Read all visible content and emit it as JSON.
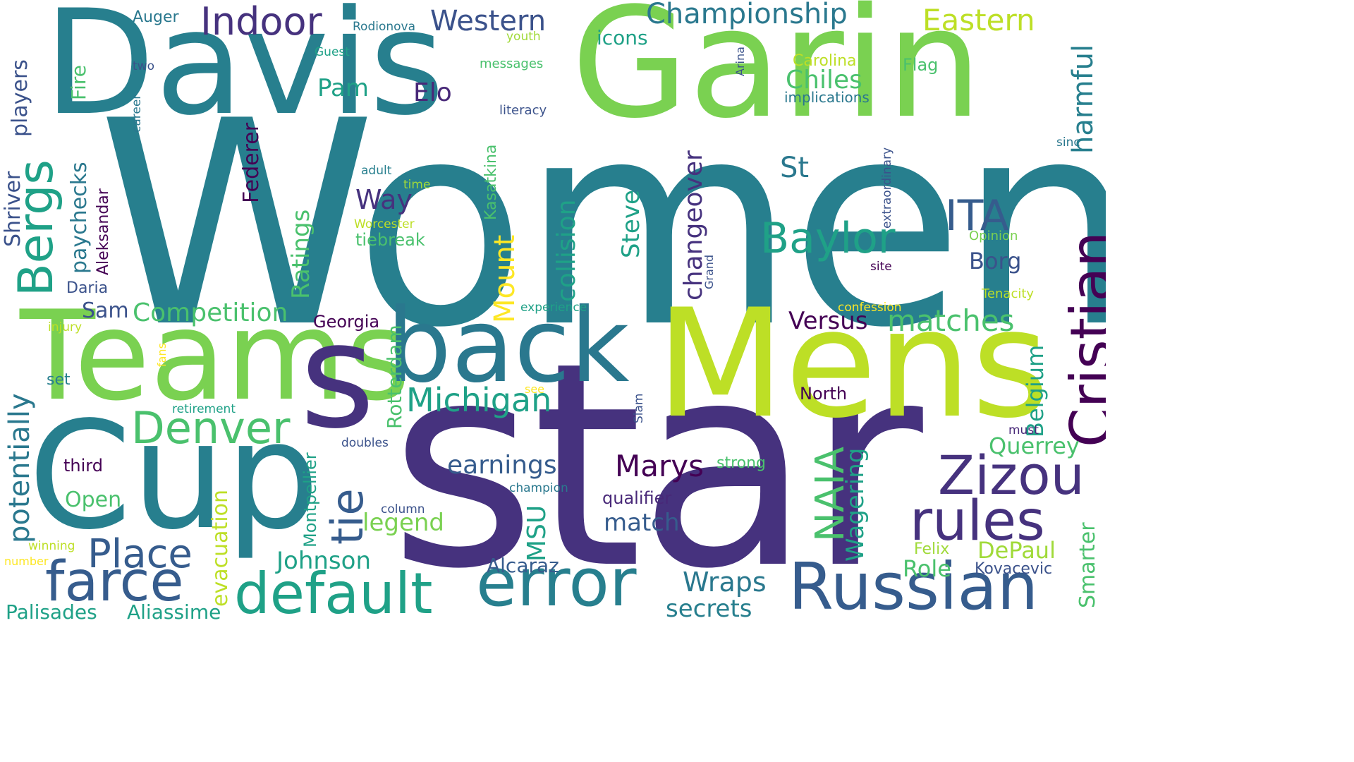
{
  "words": {
    "women": "Women",
    "star": "star",
    "davis": "Davis",
    "garin": "Garin",
    "mens": "Mens",
    "teams": "Teams",
    "back": "back",
    "cup": "Cup",
    "russian": "Russian",
    "error": "error",
    "default": "default",
    "farce": "farce",
    "cristian": "Cristian",
    "zizou": "Zizou",
    "rules": "rules",
    "baylor": "Baylor",
    "bergs": "Bergs",
    "denver": "Denver",
    "place": "Place",
    "indoor": "Indoor",
    "championship": "Championship",
    "western": "Western",
    "eastern": "Eastern",
    "ita": "ITA",
    "michigan": "Michigan",
    "marys": "Marys",
    "tie": "tie",
    "naia": "NAIA",
    "competition": "Competition",
    "matches": "matches",
    "potentially": "potentially",
    "harmful": "harmful",
    "chiles": "Chiles",
    "st": "St",
    "way": "Way",
    "elo": "Elo",
    "pam": "Pam",
    "earnings": "earnings",
    "wraps": "Wraps",
    "secrets": "secrets",
    "johnson": "Johnson",
    "legend": "legend",
    "match": "match",
    "versus": "Versus",
    "borg": "Borg",
    "querrey": "Querrey",
    "role": "Role",
    "depaul": "DePaul",
    "alcaraz": "Alcaraz",
    "open": "Open",
    "sam": "Sam",
    "palisades": "Palisades",
    "aliassime": "Aliassime",
    "ratings": "Ratings",
    "steve": "Steve",
    "collision": "collision",
    "changeover": "changeover",
    "mount": "Mount",
    "msu": "MSU",
    "wagering": "Wagering",
    "belgium": "Belgium",
    "smarter": "Smarter",
    "rotterdam": "Rotterdam",
    "evacuation": "evacuation",
    "montpellier": "Montpellier",
    "paychecks": "paychecks",
    "players": "players",
    "shriver": "Shriver",
    "federer": "Federer",
    "aleksandar": "Aleksandar",
    "fire": "Fire",
    "kasatkina": "Kasatkina",
    "georgia": "Georgia",
    "north": "North",
    "kovacevic": "Kovacevic",
    "felix": "Felix",
    "qualifier": "qualifier",
    "carolina": "Carolina",
    "flag": "Flag",
    "icons": "icons",
    "implications": "implications",
    "auger": "Auger",
    "rodionova": "Rodionova",
    "guest": "Guest",
    "youth": "youth",
    "messages": "messages",
    "two": "two",
    "career": "career",
    "literacy": "literacy",
    "arina": "Arina",
    "extraordinary": "extraordinary",
    "sinc": "sinc",
    "adult": "adult",
    "time": "time",
    "worcester": "Worcester",
    "tiebreak": "tiebreak",
    "daria": "Daria",
    "injury": "injury",
    "fans": "fans",
    "set": "set",
    "experience": "experience",
    "confession": "confession",
    "tenacity": "Tenacity",
    "opinion": "Opinion",
    "site": "site",
    "grand": "Grand",
    "see": "see",
    "slam": "Slam",
    "retirement": "retirement",
    "doubles": "doubles",
    "third": "third",
    "strong": "strong",
    "champion": "champion",
    "column": "column",
    "must": "must",
    "winning": "winning",
    "number": "number"
  }
}
